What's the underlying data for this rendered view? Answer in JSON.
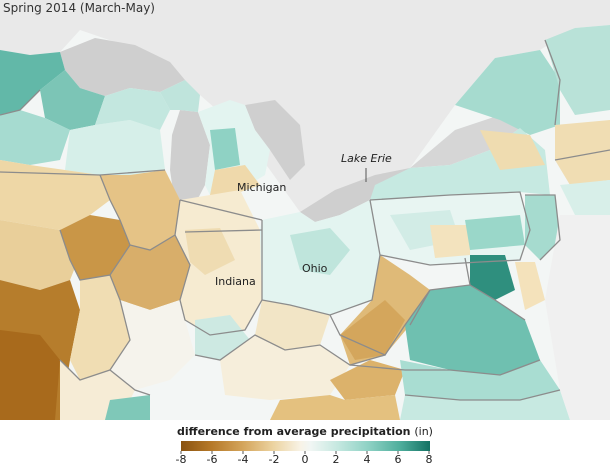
{
  "title": "Spring 2014 (March-May)",
  "labels": {
    "michigan": "Michigan",
    "indiana": "Indiana",
    "ohio": "Ohio",
    "lake_erie": "Lake Erie"
  },
  "legend": {
    "title": "difference from average precipitation",
    "unit": "(in)",
    "ticks": [
      "-8",
      "-6",
      "-4",
      "-2",
      "0",
      "2",
      "4",
      "6",
      "8"
    ],
    "colors": [
      "#a86a1c",
      "#c89040",
      "#dcb46e",
      "#eed7a6",
      "#f7f1e1",
      "#f2f5f3",
      "#d7eee9",
      "#a9ddd3",
      "#74c4b6",
      "#3f9f8d",
      "#17766a"
    ]
  },
  "colors": {
    "lake_water": "#cfcfcf",
    "no_data_land": "#ececec",
    "state_border": "#8c8c8c"
  }
}
